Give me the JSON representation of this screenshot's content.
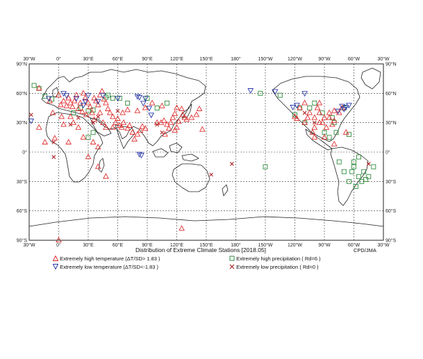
{
  "title": "Distribution of Extreme Climate Stations [2018.05]",
  "credit": "CPD/JMA",
  "axes": {
    "top_lon_labels": [
      "30°W",
      "0°",
      "30°E",
      "60°E",
      "90°E",
      "120°E",
      "150°E",
      "180°",
      "150°W",
      "120°W",
      "90°W",
      "60°W",
      "30°W"
    ],
    "bottom_lon_labels": [
      "30°W",
      "0°",
      "30°E",
      "60°E",
      "90°E",
      "120°E",
      "150°E",
      "180°",
      "150°W",
      "120°W",
      "90°W",
      "60°W",
      "30°W"
    ],
    "lat_labels": [
      "90°N",
      "60°N",
      "30°N",
      "0°",
      "30°S",
      "60°S",
      "90°S"
    ]
  },
  "legend": {
    "high_temp": "Extremely high temperature (ΔT/SD> 1.83 )",
    "low_temp": "Extremely low temperature (ΔT/SD<-1.83 )",
    "high_precip": "Extremely high precipitation ( Rd=6 )",
    "low_precip": "Extremely low precipitation ( Rd=0 )"
  },
  "colors": {
    "high_temp": "#e03030",
    "low_temp": "#2a3aa8",
    "high_precip": "#2e8b3a",
    "low_precip": "#b0282a",
    "grid": "#333333",
    "coast": "#222222"
  },
  "stations": {
    "high_temp": [
      [
        -9,
        52
      ],
      [
        -6,
        40
      ],
      [
        0,
        58
      ],
      [
        2,
        48
      ],
      [
        5,
        52
      ],
      [
        8,
        47
      ],
      [
        10,
        55
      ],
      [
        12,
        50
      ],
      [
        14,
        46
      ],
      [
        16,
        52
      ],
      [
        18,
        58
      ],
      [
        20,
        44
      ],
      [
        22,
        50
      ],
      [
        24,
        41
      ],
      [
        25,
        60
      ],
      [
        27,
        55
      ],
      [
        30,
        50
      ],
      [
        32,
        46
      ],
      [
        34,
        40
      ],
      [
        36,
        55
      ],
      [
        38,
        52
      ],
      [
        40,
        48
      ],
      [
        42,
        58
      ],
      [
        44,
        62
      ],
      [
        46,
        54
      ],
      [
        48,
        50
      ],
      [
        50,
        44
      ],
      [
        52,
        40
      ],
      [
        55,
        36
      ],
      [
        58,
        30
      ],
      [
        60,
        34
      ],
      [
        62,
        27
      ],
      [
        64,
        25
      ],
      [
        66,
        30
      ],
      [
        70,
        24
      ],
      [
        72,
        27
      ],
      [
        75,
        20
      ],
      [
        77,
        13
      ],
      [
        80,
        18
      ],
      [
        83,
        22
      ],
      [
        85,
        26
      ],
      [
        88,
        24
      ],
      [
        100,
        30
      ],
      [
        104,
        30
      ],
      [
        107,
        32
      ],
      [
        110,
        28
      ],
      [
        112,
        24
      ],
      [
        114,
        30
      ],
      [
        116,
        35
      ],
      [
        118,
        39
      ],
      [
        120,
        25
      ],
      [
        122,
        31
      ],
      [
        126,
        38
      ],
      [
        128,
        35
      ],
      [
        130,
        33
      ],
      [
        135,
        35
      ],
      [
        140,
        38
      ],
      [
        143,
        44
      ],
      [
        146,
        23
      ],
      [
        20,
        25
      ],
      [
        15,
        30
      ],
      [
        5,
        28
      ],
      [
        25,
        15
      ],
      [
        35,
        10
      ],
      [
        40,
        5
      ],
      [
        48,
        25
      ],
      [
        55,
        25
      ],
      [
        45,
        30
      ],
      [
        10,
        10
      ],
      [
        3,
        36
      ],
      [
        12,
        36
      ],
      [
        28,
        38
      ],
      [
        36,
        33
      ],
      [
        42,
        40
      ],
      [
        65,
        40
      ],
      [
        70,
        43
      ],
      [
        80,
        42
      ],
      [
        88,
        45
      ],
      [
        95,
        50
      ],
      [
        105,
        47
      ],
      [
        120,
        45
      ],
      [
        125,
        44
      ],
      [
        118,
        22
      ],
      [
        108,
        18
      ],
      [
        -20,
        65
      ],
      [
        -20,
        25
      ],
      [
        -4,
        14
      ],
      [
        -14,
        10
      ],
      [
        30,
        -5
      ],
      [
        40,
        -15
      ],
      [
        48,
        -25
      ],
      [
        -105,
        40
      ],
      [
        -100,
        35
      ],
      [
        -95,
        30
      ],
      [
        -90,
        35
      ],
      [
        -85,
        40
      ],
      [
        -80,
        32
      ],
      [
        -100,
        25
      ],
      [
        -110,
        30
      ],
      [
        -115,
        45
      ],
      [
        -97,
        45
      ],
      [
        -92,
        30
      ],
      [
        -88,
        25
      ],
      [
        -102,
        20
      ],
      [
        -107,
        35
      ],
      [
        -95,
        40
      ],
      [
        -85,
        35
      ],
      [
        -120,
        36
      ],
      [
        -118,
        34
      ],
      [
        -75,
        40
      ],
      [
        -82,
        28
      ],
      [
        -80,
        42
      ],
      [
        -72,
        45
      ],
      [
        -110,
        50
      ],
      [
        -95,
        50
      ],
      [
        -100,
        15
      ],
      [
        -90,
        15
      ],
      [
        -80,
        8
      ],
      [
        -68,
        20
      ],
      [
        0,
        -90
      ],
      [
        125,
        -78
      ]
    ],
    "low_temp": [
      [
        -28,
        32
      ],
      [
        -10,
        55
      ],
      [
        5,
        60
      ],
      [
        8,
        58
      ],
      [
        18,
        55
      ],
      [
        25,
        48
      ],
      [
        27,
        52
      ],
      [
        30,
        58
      ],
      [
        40,
        52
      ],
      [
        45,
        58
      ],
      [
        60,
        55
      ],
      [
        80,
        57
      ],
      [
        82,
        56
      ],
      [
        86,
        50
      ],
      [
        88,
        55
      ],
      [
        92,
        45
      ],
      [
        94,
        38
      ],
      [
        82,
        -2
      ],
      [
        84,
        -3
      ],
      [
        -70,
        44
      ],
      [
        -72,
        47
      ],
      [
        -68,
        46
      ],
      [
        -76,
        42
      ],
      [
        -65,
        48
      ],
      [
        -110,
        60
      ],
      [
        -140,
        62
      ],
      [
        -165,
        63
      ],
      [
        -118,
        48
      ],
      [
        -122,
        46
      ]
    ],
    "high_precip": [
      [
        -25,
        68
      ],
      [
        -20,
        65
      ],
      [
        -14,
        57
      ],
      [
        -7,
        54
      ],
      [
        15,
        40
      ],
      [
        22,
        45
      ],
      [
        30,
        42
      ],
      [
        35,
        43
      ],
      [
        48,
        56
      ],
      [
        50,
        58
      ],
      [
        55,
        55
      ],
      [
        62,
        55
      ],
      [
        70,
        50
      ],
      [
        100,
        45
      ],
      [
        110,
        50
      ],
      [
        90,
        55
      ],
      [
        -65,
        18
      ],
      [
        -85,
        15
      ],
      [
        -78,
        20
      ],
      [
        -90,
        20
      ],
      [
        -80,
        30
      ],
      [
        -70,
        45
      ],
      [
        -100,
        50
      ],
      [
        -105,
        45
      ],
      [
        -92,
        40
      ],
      [
        -82,
        35
      ],
      [
        -120,
        38
      ],
      [
        -115,
        45
      ],
      [
        -110,
        30
      ],
      [
        -75,
        -10
      ],
      [
        -70,
        -20
      ],
      [
        -60,
        -15
      ],
      [
        -55,
        -25
      ],
      [
        -52,
        -30
      ],
      [
        -65,
        -30
      ],
      [
        -58,
        -35
      ],
      [
        -50,
        -20
      ],
      [
        -45,
        -25
      ],
      [
        -40,
        -15
      ],
      [
        -60,
        -10
      ],
      [
        -55,
        -5
      ],
      [
        -48,
        -28
      ],
      [
        -62,
        -20
      ],
      [
        -150,
        -15
      ],
      [
        -155,
        60
      ],
      [
        -135,
        58
      ],
      [
        30,
        15
      ],
      [
        35,
        20
      ]
    ],
    "low_precip": [
      [
        -28,
        38
      ],
      [
        -5,
        10
      ],
      [
        12,
        28
      ],
      [
        20,
        35
      ],
      [
        35,
        30
      ],
      [
        40,
        36
      ],
      [
        60,
        42
      ],
      [
        100,
        28
      ],
      [
        105,
        20
      ],
      [
        -5,
        -5
      ],
      [
        155,
        -23
      ],
      [
        176,
        -12
      ],
      [
        -45,
        -12
      ],
      [
        -100,
        30
      ],
      [
        -110,
        40
      ]
    ]
  }
}
